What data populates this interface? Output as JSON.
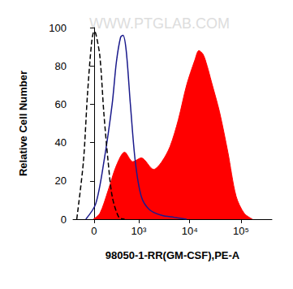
{
  "chart_data": {
    "type": "histogram",
    "xlabel": "98050-1-RR(GM-CSF),PE-A",
    "ylabel": "Relative Cell Number",
    "annotations": [
      "WWW.PTGLAB.COM"
    ],
    "xlim": [
      -300,
      400000
    ],
    "xticks": [
      0,
      {
        "value": 1000,
        "label": "10³"
      },
      {
        "value": 10000,
        "label": "10⁴"
      },
      {
        "value": 100000,
        "label": "10⁵"
      }
    ],
    "ylim": [
      0,
      100
    ],
    "yticks": [
      0,
      20,
      40,
      60,
      80,
      100
    ],
    "grid": false,
    "series": [
      {
        "type": "area",
        "color": "#ff0000",
        "x": [
          -10,
          72,
          185,
          323,
          506,
          759,
          1122,
          1980,
          2860,
          4150,
          6020,
          8720,
          12600,
          15100,
          18300,
          21900,
          26400,
          38200,
          55500,
          80300,
          116000,
          168000
        ],
        "values": [
          0,
          3,
          15,
          28,
          35,
          30,
          32,
          26,
          30,
          38,
          52,
          70,
          83,
          88,
          86,
          80,
          72,
          56,
          35,
          12,
          3,
          0
        ]
      },
      {
        "type": "line",
        "color": "#1a1a8c",
        "line_style": "solid",
        "x": [
          -104,
          20,
          125,
          248,
          323,
          410,
          465,
          548,
          673,
          852,
          1122,
          1634,
          2860,
          4980,
          8720
        ],
        "values": [
          0,
          8,
          30,
          60,
          82,
          95,
          96,
          88,
          60,
          30,
          12,
          5,
          2,
          1,
          0
        ]
      },
      {
        "type": "line",
        "color": "#000000",
        "line_style": "dashed",
        "x": [
          -236,
          -137,
          -83,
          -31,
          0,
          20,
          72,
          125,
          185,
          248,
          372,
          506
        ],
        "values": [
          0,
          30,
          65,
          92,
          98,
          97,
          85,
          55,
          30,
          12,
          1,
          0
        ]
      }
    ]
  }
}
